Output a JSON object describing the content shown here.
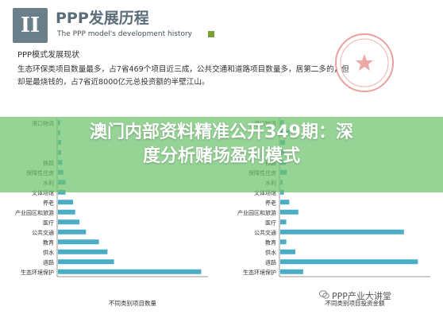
{
  "header": {
    "section_number": "II",
    "title": "PPP发展历程",
    "subtitle": "The PPP model's development history"
  },
  "section_title": "PPP模式发展现状",
  "paragraph": [
    "生态环保类项目数量最多，占7省469个项目近三成，公共交通和道路项目数量多，居第二多的，但",
    "却是最烧钱的，占7省近8000亿元总投资额的半壁江山。"
  ],
  "overlay": {
    "line1": "澳门内部资料精准公开349期：深",
    "line2": "度分析赌场盈利模式"
  },
  "watermark": "PPP产业大讲堂",
  "colors": {
    "bar": "#4bacc6",
    "overlay": "#6ec36e",
    "accent": "#7d9f3a"
  },
  "chart_data": [
    {
      "type": "bar",
      "orientation": "horizontal",
      "categories": [
        "港口物流",
        "",
        "",
        "",
        "铁路",
        "保障性住房",
        "水利",
        "文体场馆",
        "养老",
        "产业园区和旅游",
        "医疗",
        "公共交通",
        "教育",
        "供水",
        "道路",
        "生态环境保护"
      ],
      "values": [
        2,
        2,
        3,
        3,
        4,
        5,
        7,
        7,
        14,
        16,
        20,
        26,
        38,
        46,
        52,
        133
      ],
      "xlabel": "不同类别项目数量",
      "xlim": [
        0,
        140
      ]
    },
    {
      "type": "bar",
      "orientation": "horizontal",
      "categories": [
        "港口物流",
        "",
        "",
        "",
        "铁路",
        "保障性住房",
        "水利",
        "文体场馆",
        "养老",
        "产业园区和旅游",
        "医疗",
        "公共交通",
        "教育",
        "供水",
        "道路",
        "生态环境保护"
      ],
      "values": [
        60,
        150,
        80,
        70,
        90,
        110,
        40,
        60,
        150,
        300,
        100,
        2050,
        100,
        250,
        2280,
        380
      ],
      "xlabel": "不同类别项目投资金额",
      "xlim": [
        0,
        2500
      ]
    }
  ]
}
